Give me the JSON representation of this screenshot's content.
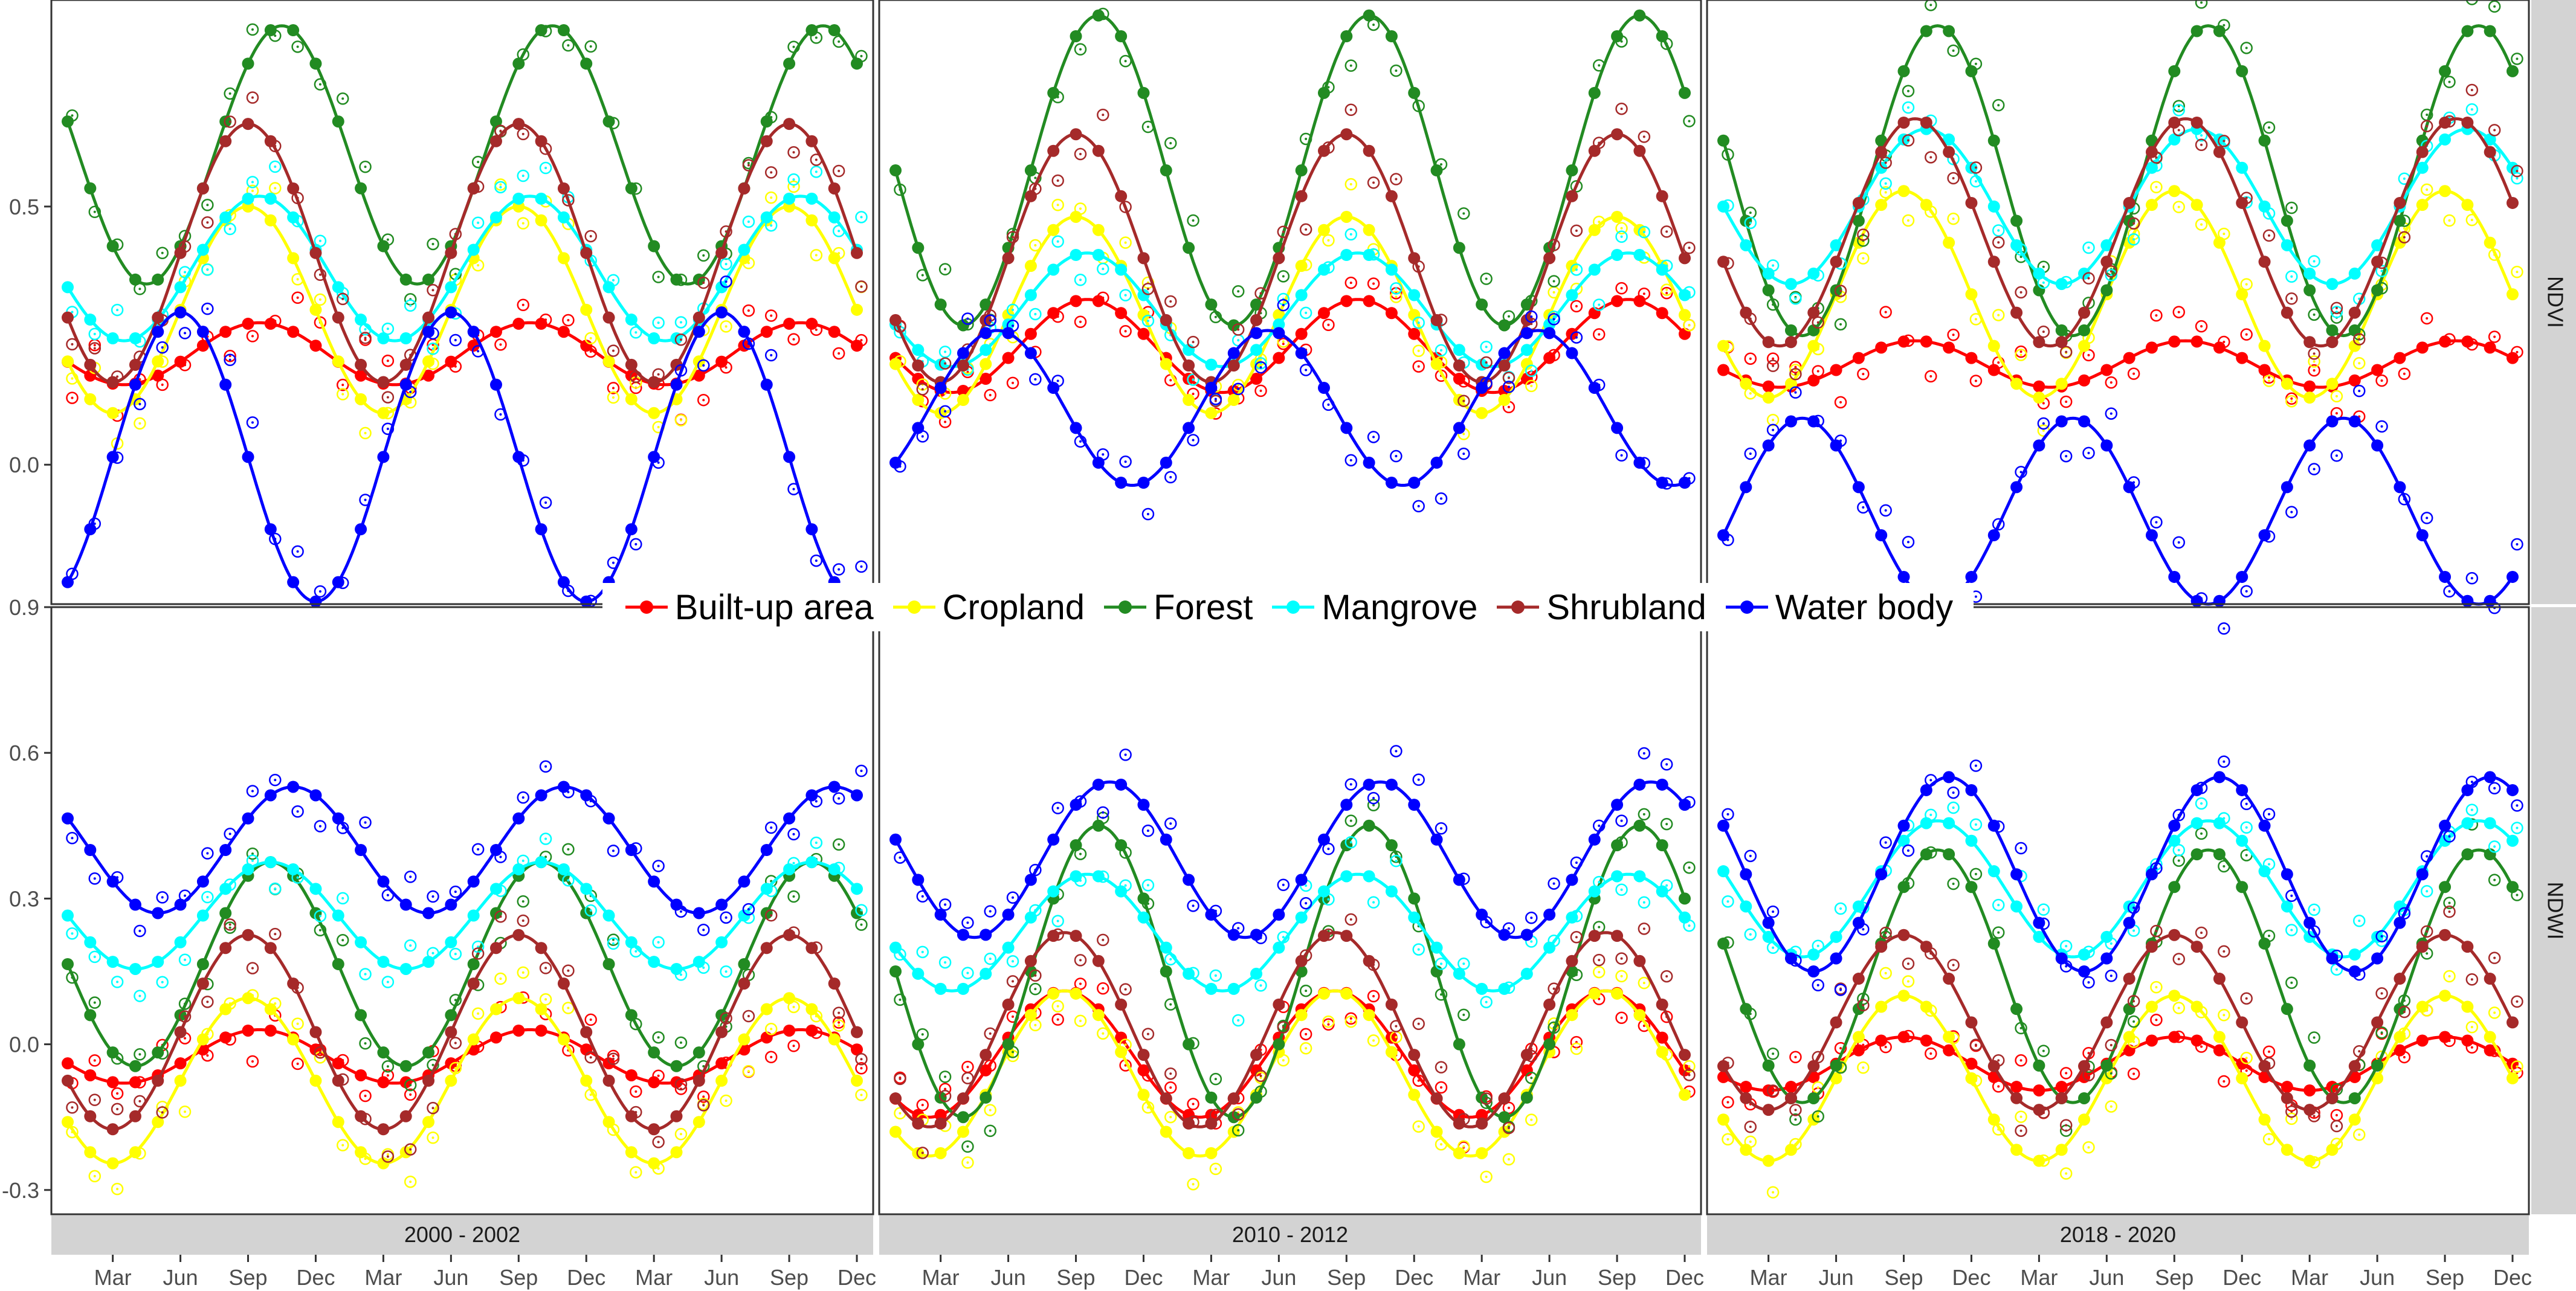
{
  "chart_data": {
    "type": "line",
    "description_kind": "faceted seasonal time-series with fitted harmonic curves (filled dots) and raw observations (open circles)",
    "row_strips": [
      "NDVI",
      "NDWI"
    ],
    "col_strips": [
      "2000 - 2002",
      "2010 - 2012",
      "2018 - 2020"
    ],
    "month_ticks": [
      "Mar",
      "Jun",
      "Sep",
      "Dec",
      "Mar",
      "Jun",
      "Sep",
      "Dec",
      "Mar",
      "Jun",
      "Sep",
      "Dec"
    ],
    "y_axes": {
      "NDVI": {
        "ticks": [
          0.0,
          0.5
        ],
        "tick_labels": [
          "0.0",
          "0.5"
        ],
        "ylim": [
          -0.27,
          0.9
        ]
      },
      "NDWI": {
        "ticks": [
          -0.3,
          0.0,
          0.3,
          0.6,
          0.9
        ],
        "tick_labels": [
          "-0.3",
          "0.0",
          "0.3",
          "0.6",
          "0.9"
        ],
        "ylim": [
          -0.35,
          0.9
        ]
      }
    },
    "x_range_months": [
      0,
      35
    ],
    "colors": {
      "Built-up area": "#ff0000",
      "Cropland": "#ffff00",
      "Forest": "#228b22",
      "Mangrove": "#00ffff",
      "Shrubland": "#a52a2a",
      "Water body": "#0000ff"
    },
    "legend": {
      "position": "middle-between-rows",
      "items": [
        "Built-up area",
        "Cropland",
        "Forest",
        "Mangrove",
        "Shrubland",
        "Water body"
      ]
    },
    "series_model": "value(month m = 0..35) = mean + amp * cos(2*pi*(m - peak_month)/12); filled dots are every month of the 3-year period",
    "panels": [
      {
        "row": "NDVI",
        "col": "2000 - 2002",
        "series": [
          {
            "name": "Built-up area",
            "mean": 0.215,
            "amp": 0.06,
            "peak_month": 8.5
          },
          {
            "name": "Cropland",
            "mean": 0.3,
            "amp": 0.2,
            "peak_month": 8.0
          },
          {
            "name": "Forest",
            "mean": 0.6,
            "amp": 0.25,
            "peak_month": 9.5
          },
          {
            "name": "Mangrove",
            "mean": 0.38,
            "amp": 0.14,
            "peak_month": 8.5
          },
          {
            "name": "Shrubland",
            "mean": 0.41,
            "amp": 0.25,
            "peak_month": 8.0
          },
          {
            "name": "Water body",
            "mean": 0.015,
            "amp": 0.28,
            "peak_month": 5.0
          }
        ]
      },
      {
        "row": "NDVI",
        "col": "2010 - 2012",
        "series": [
          {
            "name": "Built-up area",
            "mean": 0.23,
            "amp": 0.09,
            "peak_month": 8.5
          },
          {
            "name": "Cropland",
            "mean": 0.29,
            "amp": 0.19,
            "peak_month": 8.0
          },
          {
            "name": "Forest",
            "mean": 0.57,
            "amp": 0.3,
            "peak_month": 9.0
          },
          {
            "name": "Mangrove",
            "mean": 0.3,
            "amp": 0.11,
            "peak_month": 8.5
          },
          {
            "name": "Shrubland",
            "mean": 0.4,
            "amp": 0.24,
            "peak_month": 8.0
          },
          {
            "name": "Water body",
            "mean": 0.11,
            "amp": 0.15,
            "peak_month": 4.5
          }
        ]
      },
      {
        "row": "NDVI",
        "col": "2018 - 2020",
        "series": [
          {
            "name": "Built-up area",
            "mean": 0.195,
            "amp": 0.045,
            "peak_month": 8.5
          },
          {
            "name": "Cropland",
            "mean": 0.33,
            "amp": 0.2,
            "peak_month": 8.0
          },
          {
            "name": "Forest",
            "mean": 0.55,
            "amp": 0.3,
            "peak_month": 9.5
          },
          {
            "name": "Mangrove",
            "mean": 0.5,
            "amp": 0.15,
            "peak_month": 9.0
          },
          {
            "name": "Shrubland",
            "mean": 0.45,
            "amp": 0.22,
            "peak_month": 8.5
          },
          {
            "name": "Water body",
            "mean": -0.09,
            "amp": 0.18,
            "peak_month": 3.5
          }
        ]
      },
      {
        "row": "NDWI",
        "col": "2000 - 2002",
        "series": [
          {
            "name": "Built-up area",
            "mean": -0.025,
            "amp": 0.055,
            "peak_month": 8.5
          },
          {
            "name": "Cropland",
            "mean": -0.075,
            "amp": 0.17,
            "peak_month": 8.0
          },
          {
            "name": "Forest",
            "mean": 0.165,
            "amp": 0.21,
            "peak_month": 9.0
          },
          {
            "name": "Mangrove",
            "mean": 0.265,
            "amp": 0.11,
            "peak_month": 9.0
          },
          {
            "name": "Shrubland",
            "mean": 0.025,
            "amp": 0.2,
            "peak_month": 8.0
          },
          {
            "name": "Water body",
            "mean": 0.4,
            "amp": 0.13,
            "peak_month": 10.0
          }
        ]
      },
      {
        "row": "NDWI",
        "col": "2010 - 2012",
        "series": [
          {
            "name": "Built-up area",
            "mean": -0.02,
            "amp": 0.13,
            "peak_month": 7.5
          },
          {
            "name": "Cropland",
            "mean": -0.06,
            "amp": 0.17,
            "peak_month": 7.5
          },
          {
            "name": "Forest",
            "mean": 0.15,
            "amp": 0.3,
            "peak_month": 9.0
          },
          {
            "name": "Mangrove",
            "mean": 0.23,
            "amp": 0.12,
            "peak_month": 8.5
          },
          {
            "name": "Shrubland",
            "mean": 0.03,
            "amp": 0.2,
            "peak_month": 7.5
          },
          {
            "name": "Water body",
            "mean": 0.38,
            "amp": 0.16,
            "peak_month": 9.5
          }
        ]
      },
      {
        "row": "NDWI",
        "col": "2018 - 2020",
        "series": [
          {
            "name": "Built-up area",
            "mean": -0.04,
            "amp": 0.055,
            "peak_month": 8.0
          },
          {
            "name": "Cropland",
            "mean": -0.07,
            "amp": 0.17,
            "peak_month": 8.0
          },
          {
            "name": "Forest",
            "mean": 0.14,
            "amp": 0.26,
            "peak_month": 9.5
          },
          {
            "name": "Mangrove",
            "mean": 0.32,
            "amp": 0.14,
            "peak_month": 9.5
          },
          {
            "name": "Shrubland",
            "mean": 0.045,
            "amp": 0.18,
            "peak_month": 8.0
          },
          {
            "name": "Water body",
            "mean": 0.35,
            "amp": 0.2,
            "peak_month": 10.0
          }
        ]
      }
    ]
  }
}
